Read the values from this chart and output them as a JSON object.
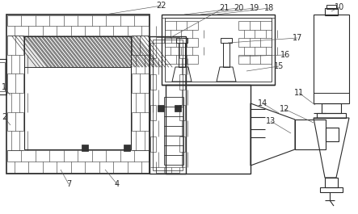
{
  "bg_color": "#ffffff",
  "line_color": "#2a2a2a",
  "fig_width": 4.43,
  "fig_height": 2.65,
  "dpi": 100,
  "font_size": 7.0
}
